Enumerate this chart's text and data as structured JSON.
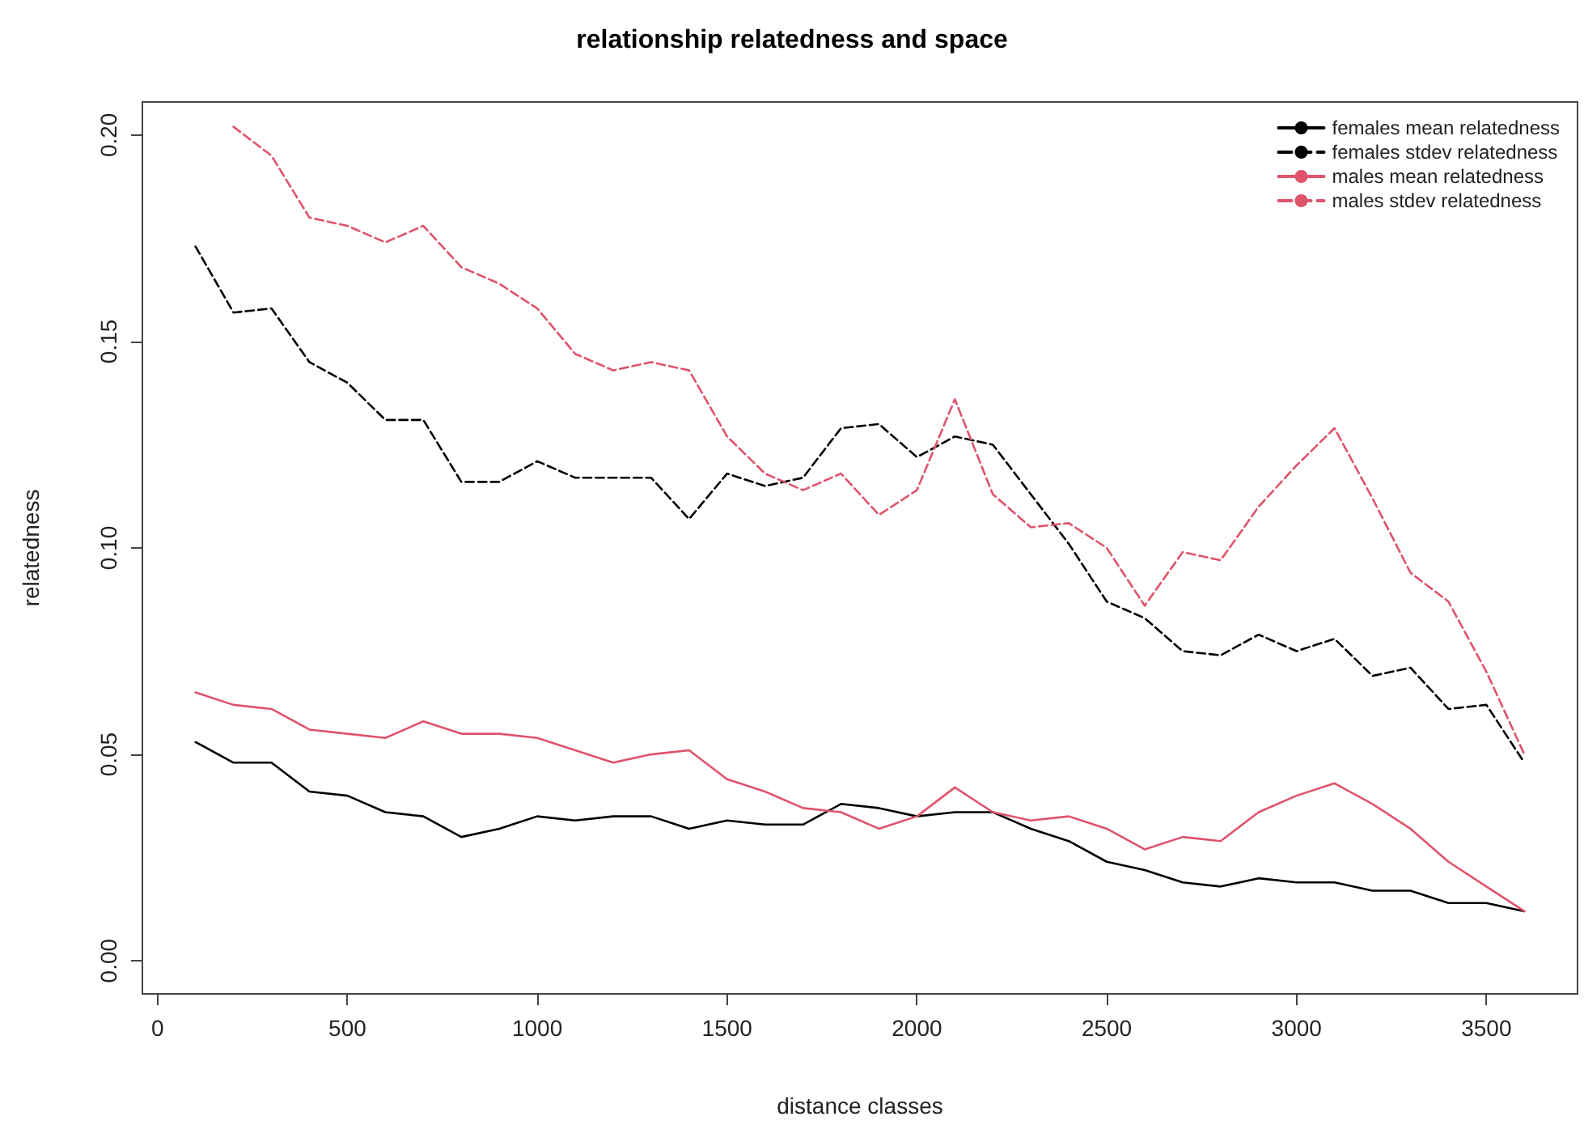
{
  "chart_data": {
    "type": "line",
    "title": "relationship relatedness and space",
    "xlabel": "distance classes",
    "ylabel": "relatedness",
    "x": [
      100,
      200,
      300,
      400,
      500,
      600,
      700,
      800,
      900,
      1000,
      1100,
      1200,
      1300,
      1400,
      1500,
      1600,
      1700,
      1800,
      1900,
      2000,
      2100,
      2200,
      2300,
      2400,
      2500,
      2600,
      2700,
      2800,
      2900,
      3000,
      3100,
      3200,
      3300,
      3400,
      3500,
      3600
    ],
    "series": [
      {
        "name": "females mean relatedness",
        "color": "#000000",
        "line_style": "solid",
        "values": [
          0.053,
          0.048,
          0.048,
          0.041,
          0.04,
          0.036,
          0.035,
          0.03,
          0.032,
          0.035,
          0.034,
          0.035,
          0.035,
          0.032,
          0.034,
          0.033,
          0.033,
          0.038,
          0.037,
          0.035,
          0.036,
          0.036,
          0.032,
          0.029,
          0.024,
          0.022,
          0.019,
          0.018,
          0.02,
          0.019,
          0.019,
          0.017,
          0.017,
          0.014,
          0.014,
          0.012
        ]
      },
      {
        "name": "females stdev relatedness",
        "color": "#000000",
        "line_style": "dashed",
        "values": [
          0.173,
          0.157,
          0.158,
          0.145,
          0.14,
          0.131,
          0.131,
          0.116,
          0.116,
          0.121,
          0.117,
          0.117,
          0.117,
          0.107,
          0.118,
          0.115,
          0.117,
          0.129,
          0.13,
          0.122,
          0.127,
          0.125,
          0.113,
          0.101,
          0.087,
          0.083,
          0.075,
          0.074,
          0.079,
          0.075,
          0.078,
          0.069,
          0.071,
          0.061,
          0.062,
          0.048
        ]
      },
      {
        "name": "males mean relatedness",
        "color": "#df536b",
        "line_style": "solid",
        "values": [
          0.065,
          0.062,
          0.061,
          0.056,
          0.055,
          0.054,
          0.058,
          0.055,
          0.055,
          0.054,
          0.051,
          0.048,
          0.05,
          0.051,
          0.044,
          0.041,
          0.037,
          0.036,
          0.032,
          0.035,
          0.042,
          0.036,
          0.034,
          0.035,
          0.032,
          0.027,
          0.03,
          0.029,
          0.036,
          0.04,
          0.043,
          0.038,
          0.032,
          0.024,
          0.018,
          0.012
        ]
      },
      {
        "name": "males stdev relatedness",
        "color": "#df536b",
        "line_style": "dashed",
        "values": [
          null,
          0.202,
          0.195,
          0.18,
          0.178,
          0.174,
          0.178,
          0.168,
          0.164,
          0.158,
          0.147,
          0.143,
          0.145,
          0.143,
          0.127,
          0.118,
          0.114,
          0.118,
          0.108,
          0.114,
          0.136,
          0.113,
          0.105,
          0.106,
          0.1,
          0.086,
          0.099,
          0.097,
          0.11,
          0.12,
          0.129,
          0.112,
          0.094,
          0.087,
          0.07,
          0.05
        ]
      }
    ],
    "xlim": [
      -40,
      3740
    ],
    "xticks": [
      0,
      500,
      1000,
      1500,
      2000,
      2500,
      3000,
      3500
    ],
    "ylim": [
      -0.008,
      0.208
    ],
    "yticks": [
      {
        "value": 0,
        "label": "0.00"
      },
      0.05,
      {
        "value": 0.1,
        "label": "0.10"
      },
      0.15,
      {
        "value": 0.2,
        "label": "0.20"
      }
    ],
    "grid": false,
    "legend": "top right",
    "marker": "none"
  }
}
